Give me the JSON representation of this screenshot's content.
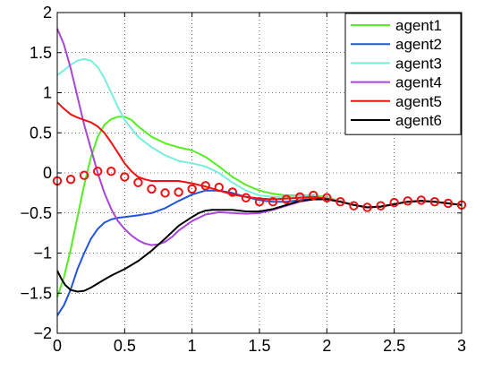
{
  "chart_data": {
    "type": "line",
    "title": "",
    "xlabel": "",
    "ylabel": "",
    "xlim": [
      0,
      3
    ],
    "ylim": [
      -2,
      2
    ],
    "x_ticks": [
      0,
      0.5,
      1,
      1.5,
      2,
      2.5,
      3
    ],
    "x_tick_labels": [
      "0",
      "0.5",
      "1",
      "1.5",
      "2",
      "2.5",
      "3"
    ],
    "y_ticks": [
      2,
      1.5,
      1,
      0.5,
      0,
      -0.5,
      -1,
      -1.5,
      -2
    ],
    "y_tick_labels": [
      "2",
      "1.5",
      "1",
      "0.5",
      "0",
      "−0.5",
      "−1",
      "−1.5",
      "−2"
    ],
    "grid": true,
    "legend_position": "top-right",
    "series": [
      {
        "name": "agent1",
        "color": "#55ee22",
        "x": [
          0,
          0.05,
          0.1,
          0.15,
          0.2,
          0.25,
          0.3,
          0.35,
          0.4,
          0.45,
          0.5,
          0.55,
          0.6,
          0.7,
          0.8,
          0.9,
          1.0,
          1.1,
          1.2,
          1.3,
          1.4,
          1.5,
          1.6,
          1.7,
          1.8,
          1.9,
          2.0,
          2.1,
          2.2,
          2.3,
          2.4,
          2.5,
          2.6,
          2.7,
          2.8,
          2.9,
          3.0
        ],
        "y": [
          -1.55,
          -1.3,
          -0.95,
          -0.55,
          -0.15,
          0.2,
          0.45,
          0.6,
          0.67,
          0.7,
          0.7,
          0.66,
          0.58,
          0.45,
          0.37,
          0.32,
          0.28,
          0.2,
          0.08,
          -0.05,
          -0.15,
          -0.22,
          -0.26,
          -0.28,
          -0.28,
          -0.28,
          -0.3,
          -0.35,
          -0.4,
          -0.43,
          -0.42,
          -0.39,
          -0.36,
          -0.35,
          -0.36,
          -0.38,
          -0.4
        ]
      },
      {
        "name": "agent2",
        "color": "#2255dd",
        "x": [
          0,
          0.05,
          0.1,
          0.15,
          0.2,
          0.25,
          0.3,
          0.35,
          0.4,
          0.45,
          0.5,
          0.6,
          0.7,
          0.8,
          0.9,
          1.0,
          1.1,
          1.2,
          1.3,
          1.4,
          1.5,
          1.6,
          1.7,
          1.8,
          1.9,
          2.0,
          2.1,
          2.2,
          2.3,
          2.4,
          2.5,
          2.6,
          2.7,
          2.8,
          2.9,
          3.0
        ],
        "y": [
          -1.78,
          -1.65,
          -1.45,
          -1.2,
          -1.0,
          -0.82,
          -0.7,
          -0.62,
          -0.58,
          -0.56,
          -0.55,
          -0.53,
          -0.5,
          -0.44,
          -0.35,
          -0.27,
          -0.22,
          -0.22,
          -0.25,
          -0.3,
          -0.34,
          -0.36,
          -0.36,
          -0.34,
          -0.32,
          -0.32,
          -0.35,
          -0.4,
          -0.43,
          -0.42,
          -0.39,
          -0.36,
          -0.35,
          -0.36,
          -0.38,
          -0.4
        ]
      },
      {
        "name": "agent3",
        "color": "#77eedd",
        "x": [
          0,
          0.05,
          0.1,
          0.15,
          0.2,
          0.25,
          0.3,
          0.35,
          0.4,
          0.45,
          0.5,
          0.6,
          0.7,
          0.8,
          0.9,
          1.0,
          1.1,
          1.2,
          1.3,
          1.4,
          1.5,
          1.6,
          1.7,
          1.8,
          1.9,
          2.0,
          2.1,
          2.2,
          2.3,
          2.4,
          2.5,
          2.6,
          2.7,
          2.8,
          2.9,
          3.0
        ],
        "y": [
          1.22,
          1.28,
          1.35,
          1.4,
          1.42,
          1.4,
          1.32,
          1.18,
          1.0,
          0.82,
          0.66,
          0.45,
          0.32,
          0.22,
          0.15,
          0.12,
          0.08,
          0.0,
          -0.12,
          -0.22,
          -0.28,
          -0.3,
          -0.3,
          -0.29,
          -0.29,
          -0.31,
          -0.35,
          -0.4,
          -0.43,
          -0.42,
          -0.39,
          -0.36,
          -0.35,
          -0.36,
          -0.38,
          -0.4
        ]
      },
      {
        "name": "agent4",
        "color": "#aa44dd",
        "x": [
          0,
          0.05,
          0.1,
          0.15,
          0.2,
          0.25,
          0.3,
          0.35,
          0.4,
          0.45,
          0.5,
          0.55,
          0.6,
          0.65,
          0.7,
          0.75,
          0.8,
          0.85,
          0.9,
          1.0,
          1.1,
          1.2,
          1.3,
          1.4,
          1.5,
          1.6,
          1.7,
          1.8,
          1.9,
          2.0,
          2.1,
          2.2,
          2.3,
          2.4,
          2.5,
          2.6,
          2.7,
          2.8,
          2.9,
          3.0
        ],
        "y": [
          1.8,
          1.6,
          1.3,
          0.95,
          0.6,
          0.3,
          0.0,
          -0.25,
          -0.45,
          -0.6,
          -0.7,
          -0.78,
          -0.84,
          -0.88,
          -0.9,
          -0.89,
          -0.86,
          -0.8,
          -0.72,
          -0.6,
          -0.52,
          -0.49,
          -0.5,
          -0.51,
          -0.5,
          -0.46,
          -0.41,
          -0.36,
          -0.33,
          -0.33,
          -0.36,
          -0.4,
          -0.43,
          -0.42,
          -0.39,
          -0.36,
          -0.35,
          -0.36,
          -0.38,
          -0.4
        ]
      },
      {
        "name": "agent5",
        "color": "#ee1111",
        "x": [
          0,
          0.05,
          0.1,
          0.15,
          0.2,
          0.25,
          0.3,
          0.35,
          0.4,
          0.45,
          0.5,
          0.55,
          0.6,
          0.65,
          0.7,
          0.8,
          0.9,
          1.0,
          1.1,
          1.2,
          1.3,
          1.4,
          1.5,
          1.6,
          1.7,
          1.8,
          1.9,
          2.0,
          2.1,
          2.2,
          2.3,
          2.4,
          2.5,
          2.6,
          2.7,
          2.8,
          2.9,
          3.0
        ],
        "y": [
          0.88,
          0.8,
          0.73,
          0.69,
          0.66,
          0.63,
          0.58,
          0.5,
          0.38,
          0.25,
          0.12,
          0.02,
          -0.05,
          -0.08,
          -0.1,
          -0.1,
          -0.1,
          -0.13,
          -0.17,
          -0.22,
          -0.27,
          -0.3,
          -0.32,
          -0.33,
          -0.32,
          -0.31,
          -0.3,
          -0.32,
          -0.36,
          -0.4,
          -0.43,
          -0.42,
          -0.39,
          -0.36,
          -0.35,
          -0.36,
          -0.38,
          -0.4
        ]
      },
      {
        "name": "agent6",
        "color": "#000000",
        "x": [
          0,
          0.03,
          0.06,
          0.1,
          0.15,
          0.2,
          0.25,
          0.3,
          0.35,
          0.4,
          0.5,
          0.6,
          0.7,
          0.8,
          0.9,
          1.0,
          1.05,
          1.1,
          1.15,
          1.2,
          1.3,
          1.4,
          1.5,
          1.6,
          1.7,
          1.8,
          1.9,
          2.0,
          2.1,
          2.2,
          2.3,
          2.4,
          2.5,
          2.6,
          2.7,
          2.8,
          2.9,
          3.0
        ],
        "y": [
          -1.22,
          -1.32,
          -1.4,
          -1.46,
          -1.48,
          -1.47,
          -1.43,
          -1.38,
          -1.33,
          -1.28,
          -1.2,
          -1.1,
          -0.97,
          -0.82,
          -0.66,
          -0.55,
          -0.5,
          -0.47,
          -0.46,
          -0.46,
          -0.46,
          -0.48,
          -0.48,
          -0.45,
          -0.4,
          -0.35,
          -0.33,
          -0.33,
          -0.36,
          -0.4,
          -0.43,
          -0.42,
          -0.39,
          -0.36,
          -0.35,
          -0.36,
          -0.38,
          -0.4
        ]
      },
      {
        "name": "",
        "color": "#ee1111",
        "marker": "circle",
        "x": [
          0,
          0.1,
          0.2,
          0.3,
          0.4,
          0.5,
          0.6,
          0.7,
          0.8,
          0.9,
          1.0,
          1.1,
          1.2,
          1.3,
          1.4,
          1.5,
          1.6,
          1.7,
          1.8,
          1.9,
          2.0,
          2.1,
          2.2,
          2.3,
          2.4,
          2.5,
          2.6,
          2.7,
          2.8,
          2.9,
          3.0
        ],
        "y": [
          -0.1,
          -0.08,
          -0.03,
          0.02,
          0.02,
          -0.05,
          -0.12,
          -0.2,
          -0.25,
          -0.24,
          -0.2,
          -0.16,
          -0.18,
          -0.24,
          -0.31,
          -0.36,
          -0.36,
          -0.33,
          -0.3,
          -0.28,
          -0.31,
          -0.36,
          -0.41,
          -0.43,
          -0.41,
          -0.37,
          -0.35,
          -0.34,
          -0.36,
          -0.38,
          -0.4
        ]
      }
    ]
  }
}
